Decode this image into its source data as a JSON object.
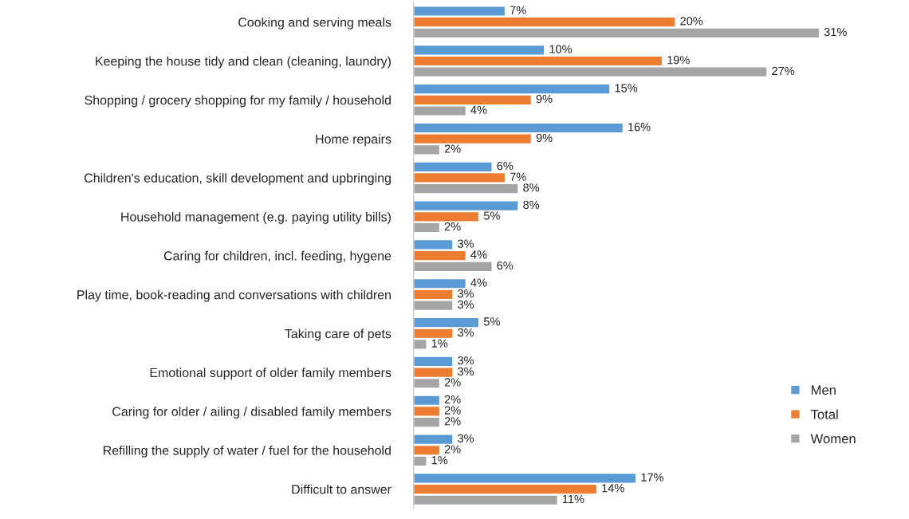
{
  "chart_data": {
    "type": "bar",
    "orientation": "horizontal",
    "legend": "bottom right",
    "grid": false,
    "tick_labels": "y",
    "categories": [
      "Cooking and serving meals",
      "Keeping the house tidy and clean (cleaning, laundry)",
      "Shopping / grocery shopping for my family / household",
      "Home repairs",
      "Children's education, skill development and upbringing",
      "Household management (e.g. paying utility bills)",
      "Caring for children, incl. feeding, hygene",
      "Play time, book-reading and conversations with children",
      "Taking care of pets",
      "Emotional support of older family members",
      "Caring for older / ailing / disabled family members",
      "Refilling the supply of water / fuel for the household",
      "Difficult to answer"
    ],
    "series": [
      {
        "name": "Men",
        "color": "#5b9bd5",
        "values": [
          7,
          10,
          15,
          16,
          6,
          8,
          3,
          4,
          5,
          3,
          2,
          3,
          17
        ],
        "value_labels": [
          "7%",
          "10%",
          "15%",
          "16%",
          "6%",
          "8%",
          "3%",
          "4%",
          "5%",
          "3%",
          "2%",
          "3%",
          "17%"
        ]
      },
      {
        "name": "Total",
        "color": "#ed7d31",
        "values": [
          20,
          19,
          9,
          9,
          7,
          5,
          4,
          3,
          3,
          3,
          2,
          2,
          14
        ],
        "value_labels": [
          "20%",
          "19%",
          "9%",
          "9%",
          "7%",
          "5%",
          "4%",
          "3%",
          "3%",
          "3%",
          "2%",
          "2%",
          "14%"
        ]
      },
      {
        "name": "Women",
        "color": "#a5a5a5",
        "values": [
          31,
          27,
          4,
          2,
          8,
          2,
          6,
          3,
          1,
          2,
          2,
          1,
          11
        ],
        "value_labels": [
          "31%",
          "27%",
          "4%",
          "2%",
          "8%",
          "2%",
          "6%",
          "3%",
          "1%",
          "2%",
          "2%",
          "1%",
          "11%"
        ]
      }
    ]
  }
}
